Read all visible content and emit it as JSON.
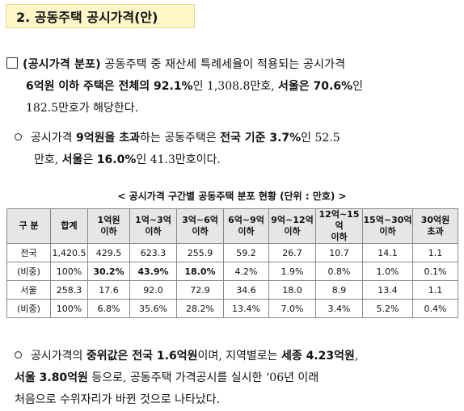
{
  "header": {
    "title": "2. 공동주택 공시가격(안)"
  },
  "p1": {
    "lead": "(공시가격 분포)",
    "t1": " 공동주택 중 재산세 특례세율이 적용되는 공시가격",
    "b1": "6억원 이하 주택은 전체의 92.1%",
    "t2": "인 1,308.8만호, ",
    "b2": "서울은 70.6%",
    "t3": "인",
    "t4": "182.5만호가 해당한다."
  },
  "p2": {
    "t1": "공시가격 ",
    "b1": "9억원을 초과",
    "t2": "하는 공동주택은 ",
    "b2": "전국 기준 3.7%",
    "t3": "인 52.5",
    "t4": "만호, ",
    "b3": "서울",
    "t5": "은 ",
    "b4": "16.0%",
    "t6": "인 41.3만호이다."
  },
  "table": {
    "title": "< 공시가격 구간별 공동주택 분포 현황 (단위 : 만호) >",
    "headers": [
      [
        "구 분",
        ""
      ],
      [
        "합계",
        ""
      ],
      [
        "1억원",
        "이하"
      ],
      [
        "1억~3억",
        "이하"
      ],
      [
        "3억~6억",
        "이하"
      ],
      [
        "6억~9억",
        "이하"
      ],
      [
        "9억~12억",
        "이하"
      ],
      [
        "12억~15억",
        "이하"
      ],
      [
        "15억~30억",
        "이하"
      ],
      [
        "30억원",
        "초과"
      ]
    ],
    "rows": [
      [
        "전국",
        "1,420.5",
        "429.5",
        "623.3",
        "255.9",
        "59.2",
        "26.7",
        "10.7",
        "14.1",
        "1.1"
      ],
      [
        "(비중)",
        "100%",
        "30.2%",
        "43.9%",
        "18.0%",
        "4.2%",
        "1.9%",
        "0.8%",
        "1.0%",
        "0.1%"
      ],
      [
        "서울",
        "258.3",
        "17.6",
        "92.0",
        "72.9",
        "34.6",
        "18.0",
        "8.9",
        "13.4",
        "1.1"
      ],
      [
        "(비중)",
        "100%",
        "6.8%",
        "35.6%",
        "28.2%",
        "13.4%",
        "7.0%",
        "3.4%",
        "5.2%",
        "0.4%"
      ]
    ]
  },
  "p3": {
    "t1": "공시가격의 ",
    "b1": "중위값은 전국 1.6억원",
    "t2": "이며, 지역별로는 ",
    "b2": "세종 4.23억원",
    "t3": ",",
    "b3": "서울 3.80억원",
    "t4": " 등으로, 공동주택 가격공시를 실시한 ‘06년 이래",
    "t5": "처음으로 수위자리가 바뀐 것으로 나타났다."
  }
}
